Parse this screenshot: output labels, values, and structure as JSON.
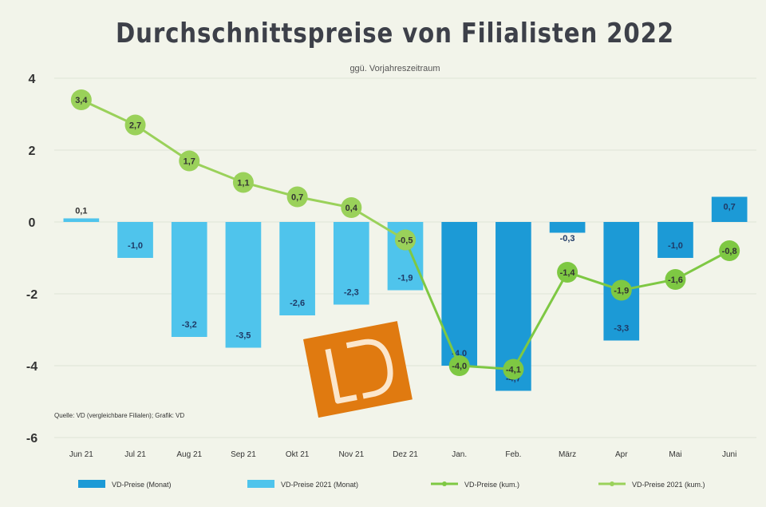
{
  "chart_data": {
    "type": "bar",
    "title": "Durchschnittspreise von Filialisten 2022",
    "subtitle": "ggü. Vorjahreszeitraum",
    "categories": [
      "Jun 21",
      "Jul 21",
      "Aug 21",
      "Sep 21",
      "Okt 21",
      "Nov 21",
      "Dez 21",
      "Jan.",
      "Feb.",
      "März",
      "Apr",
      "Mai",
      "Juni"
    ],
    "ylim": [
      -6,
      4
    ],
    "yticks": [
      4,
      2,
      0,
      -2,
      -4,
      -6
    ],
    "series": [
      {
        "name": "VD-Preise 2021 (Monat)",
        "kind": "bar",
        "color": "#4fc4ec",
        "values": [
          0.1,
          -1.0,
          -3.2,
          -3.5,
          -2.6,
          -2.3,
          -1.9,
          null,
          null,
          null,
          null,
          null,
          null
        ],
        "labels": [
          "0,1",
          "-1,0",
          "-3,2",
          "-3,5",
          "-2,6",
          "-2,3",
          "-1,9",
          "",
          "",
          "",
          "",
          "",
          ""
        ]
      },
      {
        "name": "VD-Preise (Monat)",
        "kind": "bar",
        "color": "#1c9ad6",
        "values": [
          null,
          null,
          null,
          null,
          null,
          null,
          null,
          -4.0,
          -4.7,
          -0.3,
          -3.3,
          -1.0,
          0.7
        ],
        "labels": [
          "",
          "",
          "",
          "",
          "",
          "",
          "",
          "-4,0",
          "-4,7",
          "-0,3",
          "-3,3",
          "-1,0",
          "0,7"
        ]
      },
      {
        "name": "VD-Preise (kum.)",
        "kind": "line",
        "color": "#7ec843",
        "values": [
          null,
          null,
          null,
          null,
          null,
          null,
          -0.5,
          -4.0,
          -4.1,
          -1.4,
          -1.9,
          -1.6,
          -0.8
        ],
        "labels": [
          "",
          "",
          "",
          "",
          "",
          "",
          "",
          "-4,0",
          "-4,1",
          "-1,4",
          "-1,9",
          "-1,6",
          "-0,8"
        ]
      },
      {
        "name": "VD-Preise 2021 (kum.)",
        "kind": "line",
        "color": "#9ad15a",
        "values": [
          3.4,
          2.7,
          1.7,
          1.1,
          0.7,
          0.4,
          -0.5,
          null,
          null,
          null,
          null,
          null,
          null
        ],
        "labels": [
          "3,4",
          "2,7",
          "1,7",
          "1,1",
          "0,7",
          "0,4",
          "-0,5",
          "",
          "",
          "",
          "",
          "",
          ""
        ]
      }
    ],
    "note": "Quelle: VD (vergleichbare Filialen); Grafik: VD",
    "legend": [
      "VD-Preise (Monat)",
      "VD-Preise 2021 (Monat)",
      "VD-Preise (kum.)",
      "VD-Preise 2021 (kum.)"
    ],
    "legend_position": "bottom"
  },
  "logo": {
    "text": "LD",
    "color": "#e07a10"
  }
}
